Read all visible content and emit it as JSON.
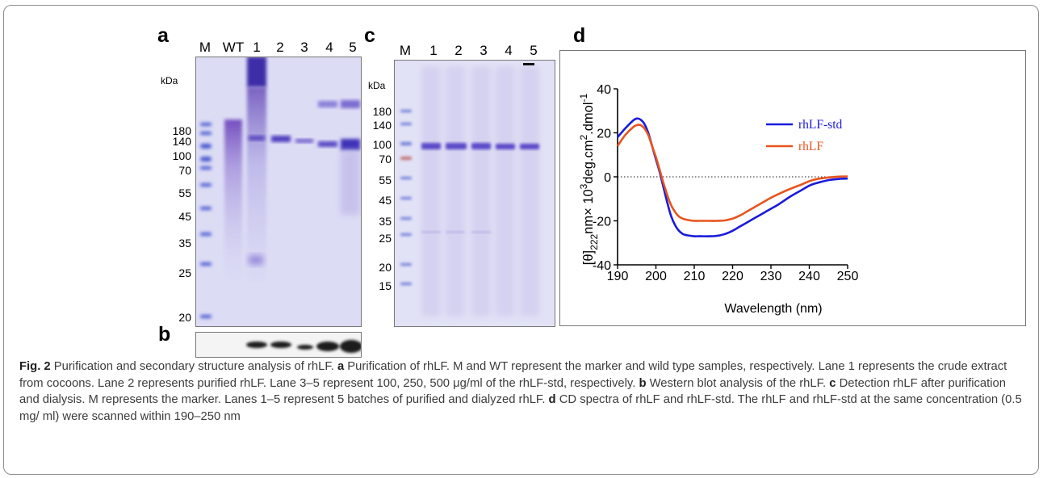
{
  "panel_a": {
    "letter": "a",
    "lanes": [
      "M",
      "WT",
      "1",
      "2",
      "3",
      "4",
      "5"
    ],
    "unit": "kDa",
    "markers": [
      "180",
      "140",
      "100",
      "70",
      "55",
      "45",
      "35",
      "25",
      "20"
    ]
  },
  "panel_b": {
    "letter": "b"
  },
  "panel_c": {
    "letter": "c",
    "lanes": [
      "M",
      "1",
      "2",
      "3",
      "4",
      "5"
    ],
    "unit": "kDa",
    "markers": [
      "180",
      "140",
      "100",
      "70",
      "55",
      "45",
      "35",
      "25",
      "20",
      "15"
    ]
  },
  "panel_d": {
    "letter": "d"
  },
  "chart_data": {
    "type": "line",
    "xlabel": "Wavelength (nm)",
    "ylabel_parts": [
      "[θ]",
      "222",
      "nm× 10",
      "3",
      "deg.cm",
      "2",
      ".dmol",
      "-1"
    ],
    "xlim": [
      190,
      250
    ],
    "ylim": [
      -40,
      40
    ],
    "xticks": [
      "190",
      "200",
      "210",
      "220",
      "230",
      "240",
      "250"
    ],
    "yticks": [
      "40",
      "20",
      "0",
      "-20",
      "-40"
    ],
    "zero_line": "dotted",
    "legend_position": "top-right",
    "series": [
      {
        "name": "rhLF-std",
        "color": "#1a1adc",
        "x": [
          190,
          192,
          194,
          195,
          196,
          197,
          198,
          199,
          200,
          201,
          202,
          203,
          204,
          205,
          206,
          207,
          208,
          209,
          210,
          211,
          212,
          214,
          216,
          218,
          220,
          222,
          224,
          226,
          228,
          230,
          232,
          235,
          238,
          240,
          242,
          245,
          248,
          250
        ],
        "y": [
          18,
          22,
          25.5,
          26.5,
          26,
          24,
          20,
          14,
          8,
          2,
          -5,
          -12,
          -18,
          -22,
          -24.5,
          -26,
          -26.5,
          -26.8,
          -27,
          -27,
          -27,
          -27,
          -26.8,
          -26,
          -24.5,
          -22.5,
          -20.5,
          -18.5,
          -16.5,
          -14.5,
          -12.5,
          -9,
          -6,
          -4,
          -2.8,
          -1.5,
          -0.9,
          -0.8
        ]
      },
      {
        "name": "rhLF",
        "color": "#e8541e",
        "x": [
          190,
          192,
          194,
          195,
          196,
          197,
          198,
          199,
          200,
          201,
          202,
          203,
          204,
          205,
          206,
          207,
          208,
          209,
          210,
          211,
          212,
          214,
          216,
          218,
          220,
          222,
          224,
          226,
          228,
          230,
          232,
          235,
          238,
          240,
          242,
          245,
          248,
          250
        ],
        "y": [
          14,
          19,
          22.5,
          23.5,
          23.5,
          22,
          19,
          14,
          9,
          3,
          -3,
          -8.5,
          -13,
          -16,
          -18,
          -19,
          -19.5,
          -19.8,
          -20,
          -20,
          -20,
          -20,
          -20,
          -19.8,
          -19,
          -17.5,
          -15.5,
          -13.5,
          -11.5,
          -9.5,
          -7.8,
          -5.5,
          -3.5,
          -2,
          -1,
          -0.3,
          0.1,
          0.2
        ]
      }
    ]
  },
  "caption": {
    "fig_label": "Fig. 2",
    "intro": " Purification and secondary structure analysis of rhLF. ",
    "a_label": "a",
    "a_text": " Purification of rhLF. M and WT represent the marker and wild type samples, respectively. Lane 1 represents the crude extract from cocoons. Lane 2 represents purified rhLF. Lane 3–5 represent 100, 250, 500 μg/ml of the rhLF-std, respectively. ",
    "b_label": "b",
    "b_text": " Western blot analysis of the rhLF. ",
    "c_label": "c",
    "c_text": " Detection rhLF after purification and dialysis. M represents the marker. Lanes 1–5 represent 5 batches of purified and dialyzed rhLF. ",
    "d_label": "d",
    "d_text": " CD spectra of rhLF and rhLF-std. The rhLF and rhLF-std at the same concentration (0.5 mg/ ml) were scanned within 190–250 nm"
  }
}
